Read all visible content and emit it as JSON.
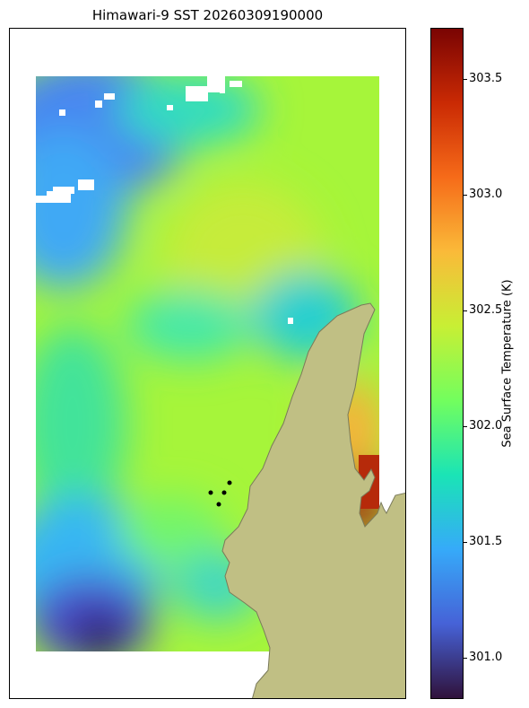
{
  "title": "Himawari-9 SST 20260309190000",
  "colorbar": {
    "label": "Sea Surface Temperature (K)",
    "min": 300.82,
    "max": 303.72,
    "ticks": [
      301.0,
      301.5,
      302.0,
      302.5,
      303.0,
      303.5
    ],
    "tick_labels": [
      "301.0",
      "301.5",
      "302.0",
      "302.5",
      "303.0",
      "303.5"
    ],
    "colormap": [
      "#30123b",
      "#4662d7",
      "#36aaf9",
      "#1ae4b6",
      "#72fe5e",
      "#c8ef34",
      "#faba39",
      "#f66b19",
      "#ca2a04",
      "#7a0403"
    ]
  },
  "colors": {
    "land": "#c0bf84",
    "land_edge": "#7a7a5a",
    "cloud_mask": "#ffffff",
    "station_marker": "#000000"
  },
  "chart_data": {
    "type": "heatmap",
    "title": "Himawari-9 SST 20260309190000",
    "variable": "Sea Surface Temperature (K)",
    "value_range": [
      300.82,
      303.72
    ],
    "approx_field_summary": [
      {
        "region": "north-west corner",
        "value": 301.2
      },
      {
        "region": "west band",
        "value": 301.9
      },
      {
        "region": "central diagonal",
        "value": 302.2
      },
      {
        "region": "south-west corner",
        "value": 300.9
      },
      {
        "region": "east near coast",
        "value": 302.7
      },
      {
        "region": "coastal bay south-east",
        "value": 303.6
      }
    ],
    "stations": 4
  }
}
